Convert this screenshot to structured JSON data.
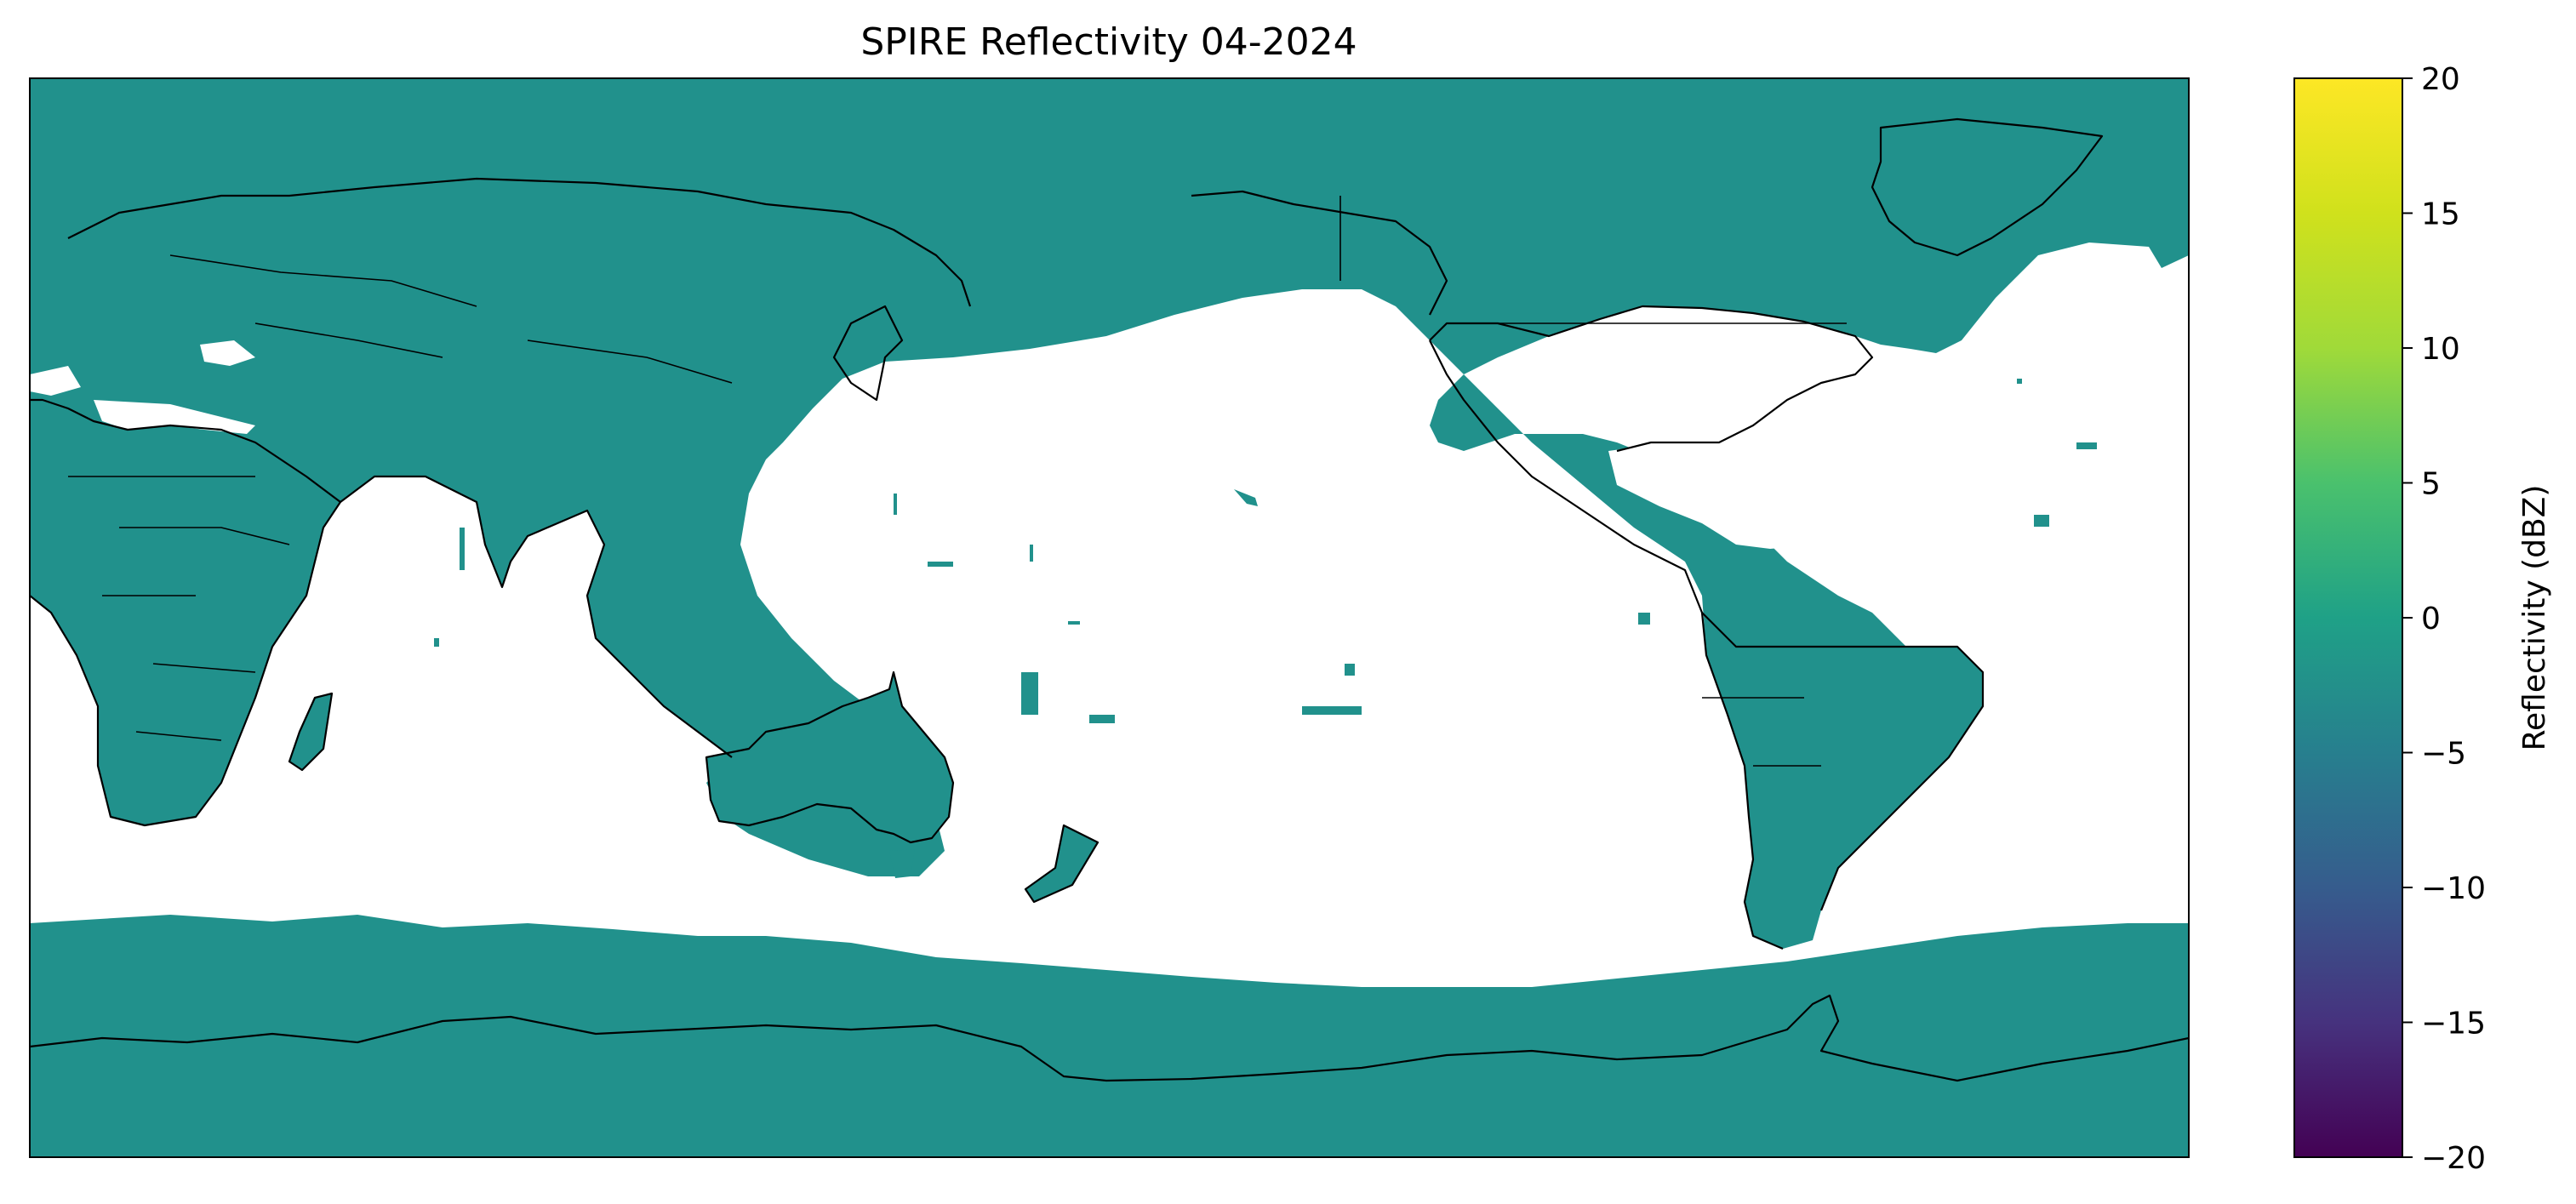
{
  "figure": {
    "title": "SPIRE Reflectivity 04-2024"
  },
  "colorbar": {
    "label": "Reflectivity (dBZ)",
    "colormap": "viridis",
    "range": [
      -20,
      20
    ],
    "ticks": [
      "20",
      "15",
      "10",
      "5",
      "0",
      "−5",
      "−10",
      "−15",
      "−20"
    ]
  },
  "map": {
    "projection": "equirectangular",
    "central_longitude": 180,
    "data_color": "#21918c",
    "background_color": "#ffffff",
    "coastline_color": "#000000"
  }
}
